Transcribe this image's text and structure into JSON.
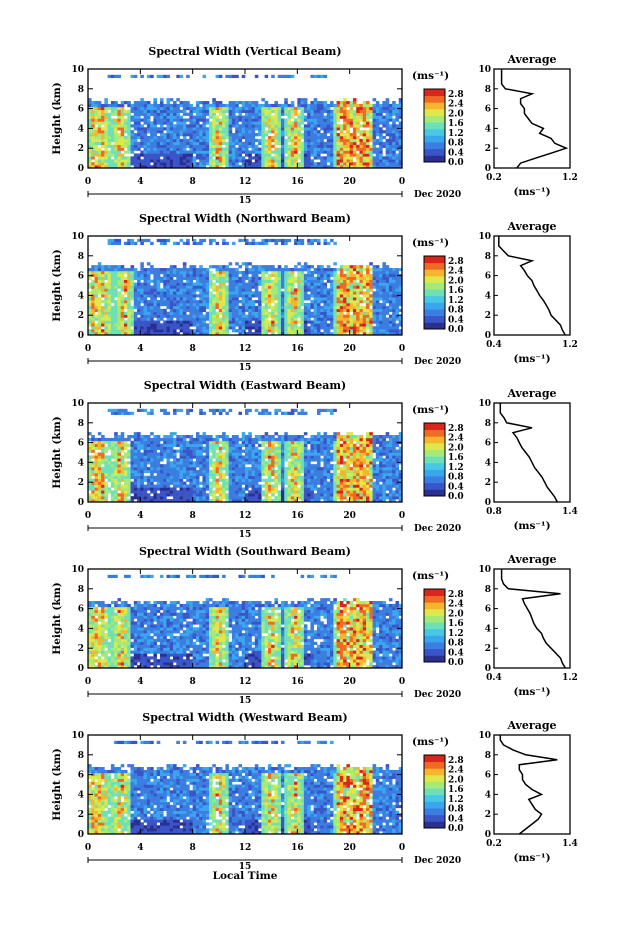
{
  "figure": {
    "xlabel": "Local Time",
    "colorbar_unit": "(ms⁻¹)",
    "avg_unit": "(ms⁻¹)",
    "avg_title": "Average",
    "ylabel": "Height (km)",
    "date_label": "Dec 2020",
    "day_label": "15",
    "colors": {
      "scale": [
        "#2b2f8f",
        "#3a55c8",
        "#3b7de0",
        "#3aa6ee",
        "#46c8e6",
        "#6ee0b8",
        "#a4ea78",
        "#dfe84a",
        "#f7b52e",
        "#ef6a22",
        "#d8261c"
      ]
    }
  },
  "chart_data": [
    {
      "type": "heatmap",
      "title": "Spectral Width (Vertical Beam)",
      "xlabel": "Local Time",
      "ylabel": "Height (km)",
      "x_ticks": [
        "0",
        "4",
        "8",
        "12",
        "16",
        "20",
        "0"
      ],
      "y_ticks": [
        "0",
        "2",
        "4",
        "6",
        "8",
        "10"
      ],
      "xlim": [
        0,
        24
      ],
      "ylim": [
        0,
        10
      ],
      "colorbar": {
        "ticks": [
          "0.0",
          "0.4",
          "0.8",
          "1.2",
          "1.6",
          "2.0",
          "2.4",
          "2.8"
        ],
        "range": [
          0,
          3.0
        ]
      },
      "cloud_top_km": 6.8,
      "upper_layer_km": [
        9.0,
        9.5
      ],
      "high_width_columns_h": [
        0.5,
        1.0,
        2.5,
        10.0,
        14.0,
        15.8,
        19.5,
        21.0
      ],
      "avg_profile": {
        "title": "Average",
        "x_ticks": [
          "0.2",
          "1.2"
        ],
        "xlim": [
          0.2,
          1.2
        ],
        "y_ticks": [
          "0",
          "2",
          "4",
          "6",
          "8",
          "10"
        ],
        "height_km": [
          0,
          0.5,
          1,
          1.5,
          2,
          2.5,
          3,
          3.5,
          4,
          4.5,
          5,
          5.5,
          6,
          6.5,
          7,
          7.5,
          8,
          8.5,
          9,
          9.5,
          10
        ],
        "value": [
          0.5,
          0.55,
          0.75,
          0.95,
          1.15,
          1.0,
          0.95,
          0.8,
          0.85,
          0.7,
          0.65,
          0.6,
          0.6,
          0.55,
          0.55,
          0.7,
          0.35,
          0.3,
          0.3,
          0.3,
          0.3
        ]
      }
    },
    {
      "type": "heatmap",
      "title": "Spectral Width (Northward Beam)",
      "xlabel": "Local Time",
      "ylabel": "Height (km)",
      "x_ticks": [
        "0",
        "4",
        "8",
        "12",
        "16",
        "20",
        "0"
      ],
      "y_ticks": [
        "0",
        "2",
        "4",
        "6",
        "8",
        "10"
      ],
      "xlim": [
        0,
        24
      ],
      "ylim": [
        0,
        10
      ],
      "colorbar": {
        "ticks": [
          "0.0",
          "0.4",
          "0.8",
          "1.2",
          "1.6",
          "2.0",
          "2.4",
          "2.8"
        ],
        "range": [
          0,
          3.0
        ]
      },
      "cloud_top_km": 7.0,
      "upper_layer_km": [
        9.0,
        9.6
      ],
      "high_width_columns_h": [
        0.5,
        1.2,
        2.8,
        10.0,
        14.0,
        15.8,
        19.5,
        21.0
      ],
      "avg_profile": {
        "title": "Average",
        "x_ticks": [
          "0.4",
          "1.2"
        ],
        "xlim": [
          0.4,
          1.2
        ],
        "y_ticks": [
          "0",
          "2",
          "4",
          "6",
          "8",
          "10"
        ],
        "height_km": [
          0,
          0.5,
          1,
          1.5,
          2,
          2.5,
          3,
          3.5,
          4,
          4.5,
          5,
          5.5,
          6,
          6.5,
          7,
          7.5,
          8,
          8.5,
          9,
          9.5,
          10
        ],
        "value": [
          1.15,
          1.12,
          1.1,
          1.05,
          1.0,
          0.98,
          0.95,
          0.92,
          0.88,
          0.85,
          0.82,
          0.8,
          0.75,
          0.72,
          0.68,
          0.8,
          0.55,
          0.5,
          0.45,
          0.45,
          0.45
        ]
      }
    },
    {
      "type": "heatmap",
      "title": "Spectral Width (Eastward Beam)",
      "xlabel": "Local Time",
      "ylabel": "Height (km)",
      "x_ticks": [
        "0",
        "4",
        "8",
        "12",
        "16",
        "20",
        "0"
      ],
      "y_ticks": [
        "0",
        "2",
        "4",
        "6",
        "8",
        "10"
      ],
      "xlim": [
        0,
        24
      ],
      "ylim": [
        0,
        10
      ],
      "colorbar": {
        "ticks": [
          "0.0",
          "0.4",
          "0.8",
          "1.2",
          "1.6",
          "2.0",
          "2.4",
          "2.8"
        ],
        "range": [
          0,
          3.0
        ]
      },
      "cloud_top_km": 6.8,
      "upper_layer_km": [
        8.8,
        9.4
      ],
      "high_width_columns_h": [
        0.5,
        1.0,
        2.5,
        10.0,
        14.0,
        15.8,
        19.5,
        21.0
      ],
      "avg_profile": {
        "title": "Average",
        "x_ticks": [
          "0.8",
          "1.4"
        ],
        "xlim": [
          0.8,
          1.4
        ],
        "y_ticks": [
          "0",
          "2",
          "4",
          "6",
          "8",
          "10"
        ],
        "height_km": [
          0,
          0.5,
          1,
          1.5,
          2,
          2.5,
          3,
          3.5,
          4,
          4.5,
          5,
          5.5,
          6,
          6.5,
          7,
          7.5,
          8,
          8.5,
          9,
          9.5,
          10
        ],
        "value": [
          1.3,
          1.28,
          1.25,
          1.22,
          1.2,
          1.18,
          1.15,
          1.12,
          1.1,
          1.08,
          1.05,
          1.02,
          1.0,
          0.98,
          0.95,
          1.1,
          0.9,
          0.88,
          0.85,
          0.85,
          0.85
        ]
      }
    },
    {
      "type": "heatmap",
      "title": "Spectral Width (Southward Beam)",
      "xlabel": "Local Time",
      "ylabel": "Height (km)",
      "x_ticks": [
        "0",
        "4",
        "8",
        "12",
        "16",
        "20",
        "0"
      ],
      "y_ticks": [
        "0",
        "2",
        "4",
        "6",
        "8",
        "10"
      ],
      "xlim": [
        0,
        24
      ],
      "ylim": [
        0,
        10
      ],
      "colorbar": {
        "ticks": [
          "0.0",
          "0.4",
          "0.8",
          "1.2",
          "1.6",
          "2.0",
          "2.4",
          "2.8"
        ],
        "range": [
          0,
          3.0
        ]
      },
      "cloud_top_km": 6.8,
      "upper_layer_km": [
        9.0,
        9.5
      ],
      "high_width_columns_h": [
        0.5,
        1.0,
        2.5,
        10.0,
        14.0,
        15.8,
        19.5,
        21.0
      ],
      "avg_profile": {
        "title": "Average",
        "x_ticks": [
          "0.4",
          "1.2"
        ],
        "xlim": [
          0.4,
          1.2
        ],
        "y_ticks": [
          "0",
          "2",
          "4",
          "6",
          "8",
          "10"
        ],
        "height_km": [
          0,
          0.5,
          1,
          1.5,
          2,
          2.5,
          3,
          3.5,
          4,
          4.5,
          5,
          5.5,
          6,
          6.5,
          7,
          7.5,
          8,
          8.5,
          9,
          9.5,
          10
        ],
        "value": [
          1.15,
          1.12,
          1.1,
          1.05,
          1.0,
          0.95,
          0.92,
          0.9,
          0.85,
          0.82,
          0.8,
          0.78,
          0.75,
          0.72,
          0.7,
          1.1,
          0.55,
          0.5,
          0.48,
          0.48,
          0.48
        ]
      }
    },
    {
      "type": "heatmap",
      "title": "Spectral Width (Westward Beam)",
      "xlabel": "Local Time",
      "ylabel": "Height (km)",
      "x_ticks": [
        "0",
        "4",
        "8",
        "12",
        "16",
        "20",
        "0"
      ],
      "y_ticks": [
        "0",
        "2",
        "4",
        "6",
        "8",
        "10"
      ],
      "xlim": [
        0,
        24
      ],
      "ylim": [
        0,
        10
      ],
      "colorbar": {
        "ticks": [
          "0.0",
          "0.4",
          "0.8",
          "1.2",
          "1.6",
          "2.0",
          "2.4",
          "2.8"
        ],
        "range": [
          0,
          3.0
        ]
      },
      "cloud_top_km": 6.8,
      "upper_layer_km": [
        9.0,
        9.5
      ],
      "high_width_columns_h": [
        0.5,
        1.0,
        2.5,
        10.0,
        14.0,
        15.8,
        19.5,
        21.0
      ],
      "avg_profile": {
        "title": "Average",
        "x_ticks": [
          "0.2",
          "1.4"
        ],
        "xlim": [
          0.2,
          1.4
        ],
        "y_ticks": [
          "0",
          "2",
          "4",
          "6",
          "8",
          "10"
        ],
        "height_km": [
          0,
          0.5,
          1,
          1.5,
          2,
          2.5,
          3,
          3.5,
          4,
          4.5,
          5,
          5.5,
          6,
          6.5,
          7,
          7.5,
          8,
          8.5,
          9,
          9.5,
          10
        ],
        "value": [
          0.6,
          0.7,
          0.8,
          0.9,
          0.95,
          0.85,
          0.8,
          0.75,
          0.95,
          0.8,
          0.7,
          0.65,
          0.65,
          0.6,
          0.6,
          1.2,
          0.7,
          0.5,
          0.35,
          0.3,
          0.3
        ]
      }
    }
  ]
}
